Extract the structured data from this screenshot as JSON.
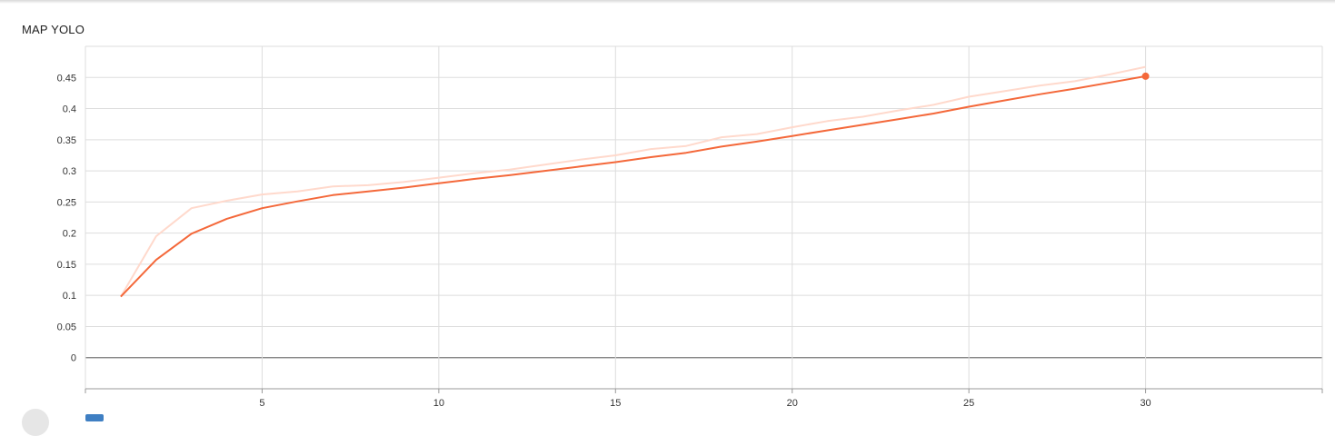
{
  "card": {
    "title": "MAP YOLO"
  },
  "chart_data": {
    "type": "line",
    "title": "MAP YOLO",
    "xlabel": "",
    "ylabel": "",
    "xlim": [
      0,
      35
    ],
    "ylim": [
      -0.05,
      0.5
    ],
    "x_ticks": [
      5,
      10,
      15,
      20,
      25,
      30
    ],
    "y_ticks": [
      0,
      0.05,
      0.1,
      0.15,
      0.2,
      0.25,
      0.3,
      0.35,
      0.4,
      0.45
    ],
    "y_tick_labels": [
      "0",
      "0.05",
      "0.1",
      "0.15",
      "0.2",
      "0.25",
      "0.3",
      "0.35",
      "0.4",
      "0.45"
    ],
    "grid": true,
    "series": [
      {
        "role": "raw",
        "color": "#ffd9cc",
        "x": [
          1,
          2,
          3,
          4,
          5,
          6,
          7,
          8,
          9,
          10,
          11,
          12,
          13,
          14,
          15,
          16,
          17,
          18,
          19,
          20,
          21,
          22,
          23,
          24,
          25,
          26,
          27,
          28,
          29,
          30
        ],
        "y": [
          0.098,
          0.195,
          0.24,
          0.252,
          0.262,
          0.267,
          0.275,
          0.277,
          0.282,
          0.289,
          0.296,
          0.302,
          0.31,
          0.318,
          0.325,
          0.335,
          0.34,
          0.354,
          0.359,
          0.37,
          0.38,
          0.387,
          0.397,
          0.406,
          0.419,
          0.428,
          0.437,
          0.444,
          0.455,
          0.467
        ]
      },
      {
        "role": "smoothed",
        "color": "#f4683a",
        "x": [
          1,
          2,
          3,
          4,
          5,
          6,
          7,
          8,
          9,
          10,
          11,
          12,
          13,
          14,
          15,
          16,
          17,
          18,
          19,
          20,
          21,
          22,
          23,
          24,
          25,
          26,
          27,
          28,
          29,
          30
        ],
        "y": [
          0.098,
          0.157,
          0.199,
          0.223,
          0.24,
          0.251,
          0.261,
          0.267,
          0.273,
          0.28,
          0.287,
          0.293,
          0.3,
          0.307,
          0.314,
          0.322,
          0.329,
          0.339,
          0.347,
          0.356,
          0.365,
          0.374,
          0.383,
          0.392,
          0.403,
          0.413,
          0.423,
          0.432,
          0.442,
          0.452
        ]
      }
    ]
  }
}
